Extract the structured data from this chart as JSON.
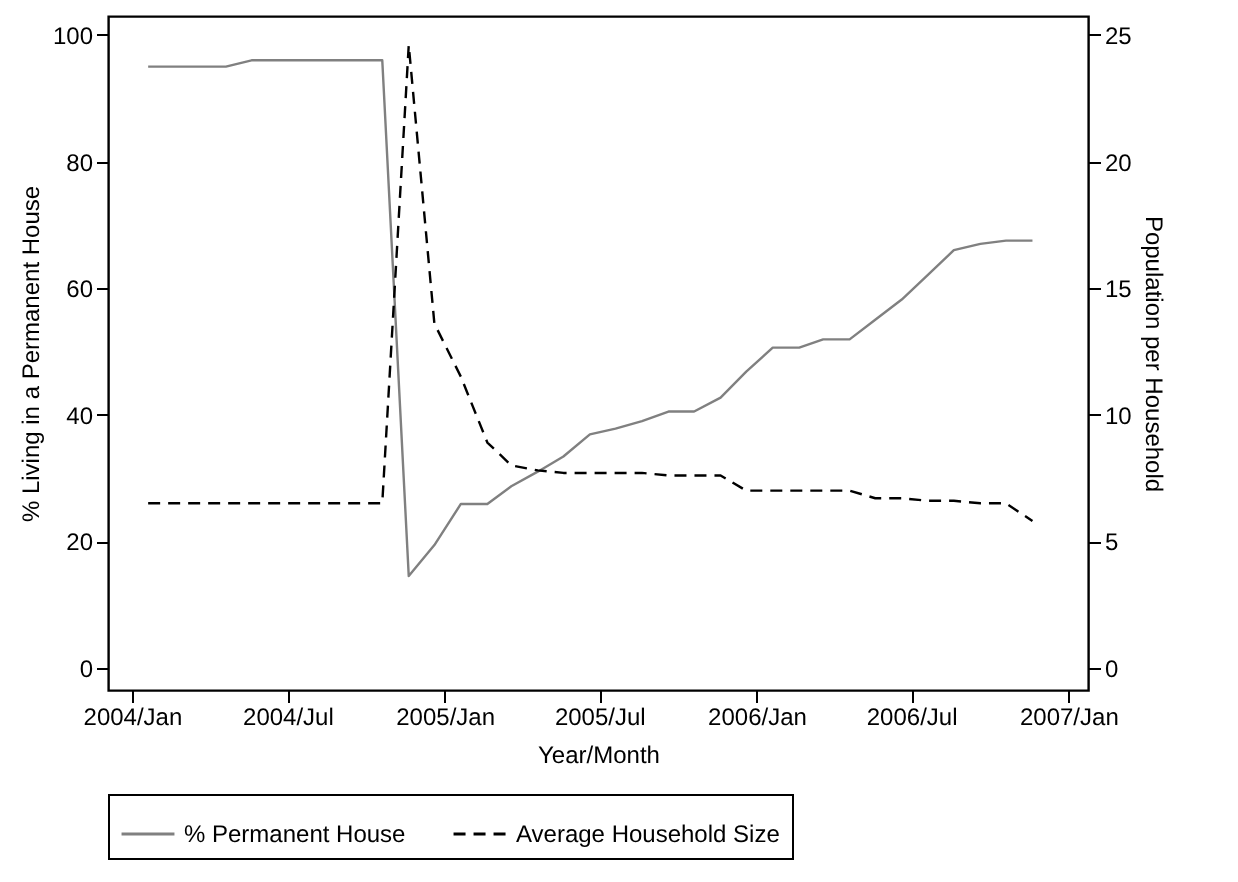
{
  "chart_data": {
    "type": "line",
    "xlabel": "Year/Month",
    "ylabel": "% Living in a Permanent House",
    "y2label": "Population per Household",
    "x": [
      "2004-01-20",
      "2004-02-20",
      "2004-03-20",
      "2004-04-20",
      "2004-05-20",
      "2004-06-20",
      "2004-07-20",
      "2004-08-20",
      "2004-09-20",
      "2004-10-20",
      "2004-11-20",
      "2004-12-20",
      "2005-01-20",
      "2005-02-20",
      "2005-03-20",
      "2005-04-20",
      "2005-05-20",
      "2005-06-20",
      "2005-07-20",
      "2005-08-20",
      "2005-09-20",
      "2005-10-20",
      "2005-11-20",
      "2005-12-20",
      "2006-01-20",
      "2006-02-20",
      "2006-03-20",
      "2006-04-20",
      "2006-05-20",
      "2006-06-20",
      "2006-07-20",
      "2006-08-20",
      "2006-09-20",
      "2006-10-20",
      "2006-11-20"
    ],
    "series": [
      {
        "name": "% Permanent House",
        "color": "#808080",
        "line_style": "solid",
        "values": [
          95,
          95,
          95,
          95,
          96,
          96,
          96,
          96,
          96,
          96,
          14.5,
          19.4,
          25.9,
          25.9,
          28.7,
          31,
          33.4,
          36.9,
          37.8,
          39,
          40.5,
          40.5,
          42.7,
          46.8,
          50.6,
          50.6,
          51.9,
          51.9,
          55,
          58.2,
          62,
          66,
          67,
          67.5,
          67.5
        ]
      },
      {
        "name": "Average Household Size",
        "color": "#000000",
        "line_style": "dashed",
        "axis": "y2",
        "values": [
          6.5,
          6.5,
          6.5,
          6.5,
          6.5,
          6.5,
          6.5,
          6.5,
          6.5,
          6.5,
          24.6,
          13.6,
          11.5,
          8.9,
          8,
          7.8,
          7.7,
          7.7,
          7.7,
          7.7,
          7.6,
          7.6,
          7.6,
          7.0,
          7.0,
          7.0,
          7.0,
          7.0,
          6.7,
          6.7,
          6.6,
          6.6,
          6.5,
          6.5,
          5.8
        ]
      }
    ],
    "xlim": [
      "2003-12-04",
      "2007-01-24"
    ],
    "xticks": [
      {
        "value": "2004-01",
        "label": "2004/Jan"
      },
      {
        "value": "2004-07",
        "label": "2004/Jul"
      },
      {
        "value": "2005-01",
        "label": "2005/Jan"
      },
      {
        "value": "2005-07",
        "label": "2005/Jul"
      },
      {
        "value": "2006-01",
        "label": "2006/Jan"
      },
      {
        "value": "2006-07",
        "label": "2006/Jul"
      },
      {
        "value": "2007-01",
        "label": "2007/Jan"
      }
    ],
    "ylim": [
      -3.5,
      103
    ],
    "yticks": [
      0,
      20,
      40,
      60,
      80,
      100
    ],
    "y2lim": [
      -0.875,
      25.75
    ],
    "y2ticks": [
      0,
      5,
      10,
      15,
      20,
      25
    ],
    "legend": "bottom",
    "grid": false
  }
}
